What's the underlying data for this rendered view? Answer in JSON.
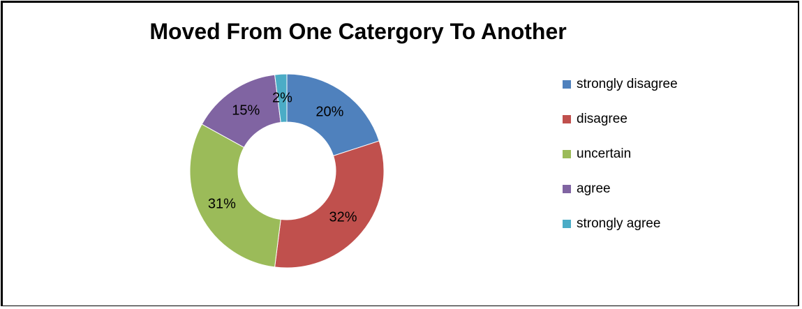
{
  "chart_data": {
    "type": "pie",
    "variant": "donut",
    "title": "Moved From One Catergory To Another",
    "categories": [
      "strongly disagree",
      "disagree",
      "uncertain",
      "agree",
      "strongly agree"
    ],
    "values": [
      20,
      32,
      31,
      15,
      2
    ],
    "labels": [
      "20%",
      "32%",
      "31%",
      "15%",
      "2%"
    ],
    "colors": [
      "#4f81bd",
      "#c0504d",
      "#9bbb59",
      "#8064a2",
      "#4bacc6"
    ],
    "legend_position": "right",
    "unit": "%"
  }
}
